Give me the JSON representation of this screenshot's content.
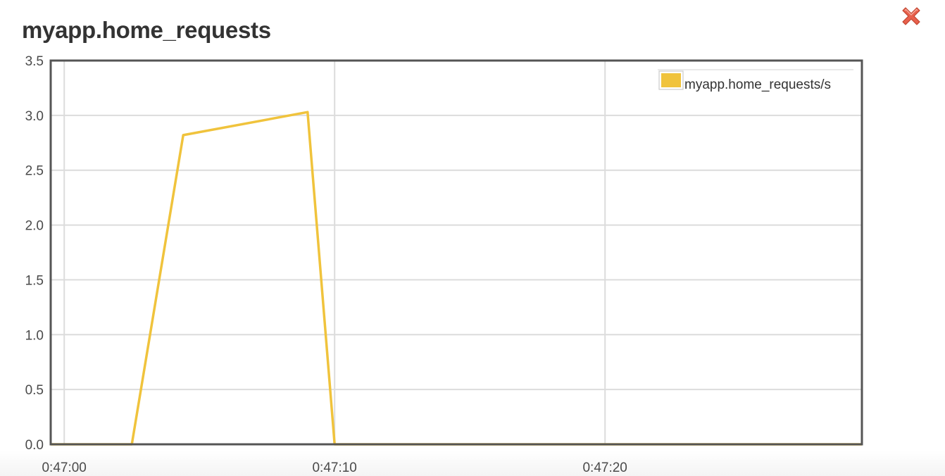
{
  "panel": {
    "title": "myapp.home_requests",
    "close_icon": "close-x-icon"
  },
  "colors": {
    "series": "#f0c33c",
    "grid": "#dcdcdc",
    "frame": "#555555",
    "close": "#e8604c"
  },
  "chart_data": {
    "type": "line",
    "title": "myapp.home_requests",
    "xlabel": "",
    "ylabel": "",
    "xlim": [
      "0:46:59.5",
      "0:47:29.5"
    ],
    "ylim": [
      0,
      3.5
    ],
    "x_ticks": [
      "0:47:00",
      "0:47:10",
      "0:47:20"
    ],
    "y_ticks": [
      "0.0",
      "0.5",
      "1.0",
      "1.5",
      "2.0",
      "2.5",
      "3.0",
      "3.5"
    ],
    "grid": true,
    "legend": "top-right",
    "series": [
      {
        "name": "myapp.home_requests/s",
        "x": [
          "0:46:59.5",
          "0:47:02.5",
          "0:47:04.4",
          "0:47:09.0",
          "0:47:10.0",
          "0:47:29.5"
        ],
        "values": [
          0,
          0,
          2.82,
          3.03,
          0,
          0
        ]
      }
    ]
  }
}
